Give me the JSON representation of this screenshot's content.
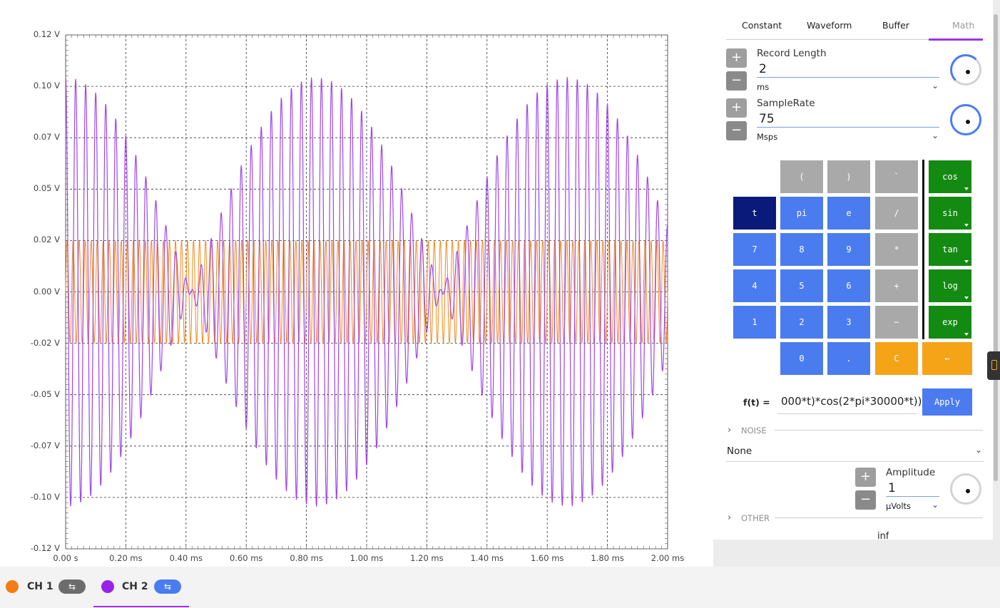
{
  "chart_data": {
    "type": "line",
    "x_range_ms": [
      0,
      2
    ],
    "ylim": [
      -0.12,
      0.12
    ],
    "y_ticks": [
      "0.12 V",
      "0.10 V",
      "0.07 V",
      "0.05 V",
      "0.02 V",
      "0.00 V",
      "-0.02 V",
      "-0.05 V",
      "-0.07 V",
      "-0.10 V",
      "-0.12 V"
    ],
    "x_ticks": [
      "0.00 s",
      "0.20 ms",
      "0.40 ms",
      "0.60 ms",
      "0.80 ms",
      "1.00 ms",
      "1.20 ms",
      "1.40 ms",
      "1.60 ms",
      "1.80 ms",
      "2.00 ms"
    ],
    "grid": true,
    "series": [
      {
        "channel": "CH 1",
        "color": "#f08a1e",
        "waveform": "sine",
        "amplitude_v": 0.024,
        "frequency_hz": 50000
      },
      {
        "channel": "CH 2",
        "color": "#a046e8",
        "waveform": "am-cosine",
        "amplitude_v": 0.1,
        "carrier_hz": 30000,
        "envelope_hz": 1200
      }
    ]
  },
  "tabs": [
    {
      "label": "Constant"
    },
    {
      "label": "Waveform"
    },
    {
      "label": "Buffer"
    },
    {
      "label": "Math"
    }
  ],
  "record_length": {
    "label": "Record Length",
    "value": "2",
    "unit": "ms"
  },
  "sample_rate": {
    "label": "SampleRate",
    "value": "75",
    "unit": "Msps"
  },
  "keypad": {
    "row1": [
      "(",
      ")",
      "`"
    ],
    "t": "t",
    "pi": "pi",
    "e": "e",
    "slash": "/",
    "k7": "7",
    "k8": "8",
    "k9": "9",
    "mul": "*",
    "k4": "4",
    "k5": "5",
    "k6": "6",
    "plus": "+",
    "k1": "1",
    "k2": "2",
    "k3": "3",
    "minus": "−",
    "k0": "0",
    "dot": ".",
    "clear": "C",
    "back": "←",
    "funcs": [
      "cos",
      "sin",
      "tan",
      "log",
      "exp"
    ]
  },
  "formula": {
    "label": "f(t) =",
    "value": "000*t)*cos(2*pi*30000*t))",
    "apply": "Apply"
  },
  "noise": {
    "section": "NOISE",
    "value": "None"
  },
  "amplitude": {
    "label": "Amplitude",
    "value": "1",
    "unit": "μVolts"
  },
  "other": {
    "section": "OTHER",
    "partial_value": "inf"
  },
  "channels": [
    {
      "label": "CH 1",
      "color": "#f57c12"
    },
    {
      "label": "CH 2",
      "color": "#9b22e8"
    }
  ],
  "icons": {
    "plus": "plus-icon",
    "minus": "minus-icon",
    "chevron": "chevron-down-icon",
    "section": "chevron-right-icon"
  }
}
